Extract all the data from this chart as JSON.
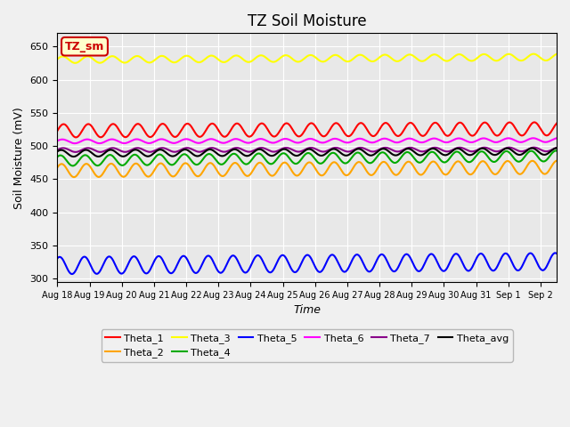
{
  "title": "TZ Soil Moisture",
  "xlabel": "Time",
  "ylabel": "Soil Moisture (mV)",
  "ylim": [
    295,
    670
  ],
  "xlim": [
    0,
    15.5
  ],
  "x_tick_labels": [
    "Aug 18",
    "Aug 19",
    "Aug 20",
    "Aug 21",
    "Aug 22",
    "Aug 23",
    "Aug 24",
    "Aug 25",
    "Aug 26",
    "Aug 27",
    "Aug 28",
    "Aug 29",
    "Aug 30",
    "Aug 31",
    "Sep 1",
    "Sep 2"
  ],
  "series": {
    "Theta_1": {
      "color": "#ff0000",
      "base": 523,
      "amp": 10,
      "trend": 3,
      "freq": 1.3,
      "phase": 0.0
    },
    "Theta_2": {
      "color": "#ffa500",
      "base": 463,
      "amp": 10,
      "trend": 5,
      "freq": 1.3,
      "phase": 0.5
    },
    "Theta_3": {
      "color": "#ffff00",
      "base": 630,
      "amp": 5,
      "trend": 4,
      "freq": 1.3,
      "phase": 0.2
    },
    "Theta_4": {
      "color": "#00aa00",
      "base": 478,
      "amp": 8,
      "trend": 7,
      "freq": 1.3,
      "phase": 0.8
    },
    "Theta_5": {
      "color": "#0000ff",
      "base": 320,
      "amp": 13,
      "trend": 6,
      "freq": 1.3,
      "phase": 1.0
    },
    "Theta_6": {
      "color": "#ff00ff",
      "base": 507,
      "amp": 3,
      "trend": 2,
      "freq": 1.3,
      "phase": 0.3
    },
    "Theta_7": {
      "color": "#880088",
      "base": 494,
      "amp": 3,
      "trend": 1,
      "freq": 1.3,
      "phase": 0.1
    },
    "Theta_avg": {
      "color": "#000000",
      "base": 489,
      "amp": 5,
      "trend": 3,
      "freq": 1.3,
      "phase": 0.6
    }
  },
  "series_order": [
    "Theta_1",
    "Theta_2",
    "Theta_3",
    "Theta_4",
    "Theta_5",
    "Theta_6",
    "Theta_7",
    "Theta_avg"
  ],
  "legend_box_label": "TZ_sm",
  "legend_box_facecolor": "#ffffcc",
  "legend_box_edgecolor": "#cc0000",
  "bg_color": "#e8e8e8",
  "fig_bg_color": "#f0f0f0",
  "title_fontsize": 12,
  "axis_label_fontsize": 9
}
